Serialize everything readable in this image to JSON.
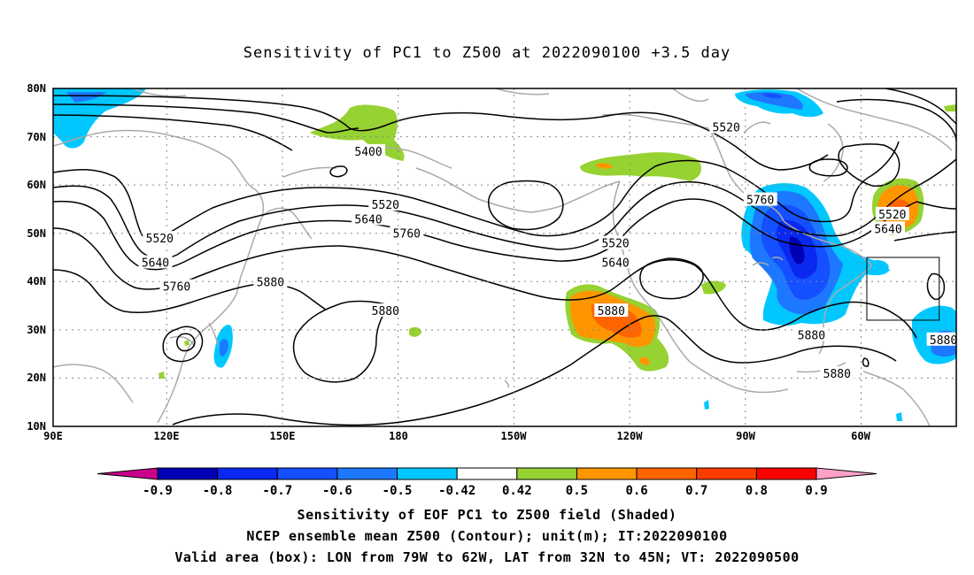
{
  "title": "Sensitivity of PC1 to Z500 at 2022090100 +3.5 day",
  "map": {
    "lon_range": [
      90,
      302
    ],
    "lat_range": [
      10,
      80
    ],
    "lat_ticks": [
      "80N",
      "70N",
      "60N",
      "50N",
      "40N",
      "30N",
      "20N",
      "10N"
    ],
    "lon_ticks": [
      "90E",
      "120E",
      "150E",
      "180",
      "150W",
      "120W",
      "90W",
      "60W"
    ],
    "grid": "dotted gray at every 10 deg lat and 30 deg lon",
    "coastline_color": "#aaaaaa",
    "contour_color": "#000000",
    "contour_labels": [
      {
        "text": "5400",
        "lon": 164,
        "lat": 67
      },
      {
        "text": "5520",
        "lon": 248,
        "lat": 72
      },
      {
        "text": "5520",
        "lon": 168,
        "lat": 56
      },
      {
        "text": "5640",
        "lon": 164,
        "lat": 53
      },
      {
        "text": "5520",
        "lon": 115,
        "lat": 49
      },
      {
        "text": "5640",
        "lon": 114,
        "lat": 44
      },
      {
        "text": "5760",
        "lon": 119,
        "lat": 39
      },
      {
        "text": "5760",
        "lon": 173,
        "lat": 50
      },
      {
        "text": "5880",
        "lon": 141,
        "lat": 40
      },
      {
        "text": "5880",
        "lon": 168,
        "lat": 34
      },
      {
        "text": "5520",
        "lon": 222,
        "lat": 48
      },
      {
        "text": "5640",
        "lon": 222,
        "lat": 44
      },
      {
        "text": "5880",
        "lon": 221,
        "lat": 34
      },
      {
        "text": "5760",
        "lon": 256,
        "lat": 57
      },
      {
        "text": "5520",
        "lon": 287,
        "lat": 54
      },
      {
        "text": "5640",
        "lon": 286,
        "lat": 51
      },
      {
        "text": "5880",
        "lon": 268,
        "lat": 29
      },
      {
        "text": "5880",
        "lon": 274,
        "lat": 21
      },
      {
        "text": "5880",
        "lon": 299,
        "lat": 28
      }
    ],
    "valid_area_box": {
      "lon": [
        281,
        298
      ],
      "lat": [
        32,
        45
      ]
    }
  },
  "colorbar": {
    "colors": [
      "#c8008c",
      "#0000b4",
      "#0a28f0",
      "#1450ff",
      "#1e78ff",
      "#00c8ff",
      "#ffffff",
      "#96d232",
      "#ff9600",
      "#ff6400",
      "#ff3c00",
      "#ff0000",
      "#ffa0c8"
    ],
    "labels": [
      "-0.9",
      "-0.8",
      "-0.7",
      "-0.6",
      "-0.5",
      "-0.42",
      "0.42",
      "0.5",
      "0.6",
      "0.7",
      "0.8",
      "0.9"
    ]
  },
  "caption": {
    "line1": "Sensitivity of EOF PC1 to Z500 field (Shaded)",
    "line2": "NCEP ensemble mean Z500 (Contour); unit(m); IT:2022090100",
    "line3": "Valid area (box): LON from 79W to 62W, LAT from 32N to 45N; VT: 2022090500"
  }
}
